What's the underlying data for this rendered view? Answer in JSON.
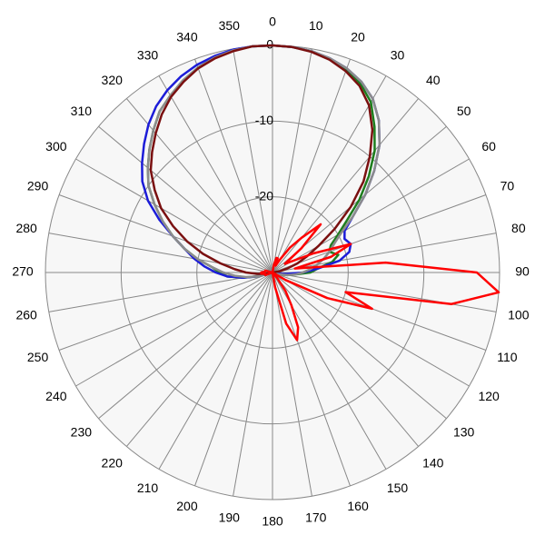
{
  "chart_data": {
    "type": "polar",
    "x": [
      0,
      5,
      10,
      15,
      20,
      25,
      30,
      35,
      40,
      45,
      50,
      55,
      60,
      65,
      70,
      75,
      80,
      85,
      90,
      95,
      100,
      105,
      110,
      115,
      120,
      125,
      130,
      135,
      140,
      145,
      150,
      155,
      160,
      165,
      170,
      175,
      180,
      185,
      190,
      195,
      200,
      205,
      210,
      215,
      220,
      225,
      230,
      235,
      240,
      245,
      250,
      255,
      260,
      265,
      270,
      275,
      280,
      285,
      290,
      295,
      300,
      305,
      310,
      315,
      320,
      325,
      330,
      335,
      340,
      345,
      350,
      355
    ],
    "xlim": [
      0,
      360
    ],
    "xticks": [
      0,
      10,
      20,
      30,
      40,
      50,
      60,
      70,
      80,
      90,
      100,
      110,
      120,
      130,
      140,
      150,
      160,
      170,
      180,
      190,
      200,
      210,
      220,
      230,
      240,
      250,
      260,
      270,
      280,
      290,
      300,
      310,
      320,
      330,
      340,
      350
    ],
    "ylim": [
      -30,
      0
    ],
    "yticks": [
      0,
      -10,
      -20
    ],
    "grid": true,
    "series": [
      {
        "color": "#1e7d1e",
        "values": [
          0,
          -0.1,
          -0.3,
          -0.8,
          -1.5,
          -2.5,
          -4,
          -6.5,
          -9,
          -12,
          -15,
          -18,
          -20,
          -21.5,
          -22,
          -21,
          -22,
          -24,
          -25,
          -27,
          -28,
          -29,
          -30,
          -30,
          -30,
          -30,
          -30,
          -30,
          -30,
          -30,
          -30,
          -30,
          -30,
          -30,
          -30,
          -30,
          -30,
          -30,
          -30,
          -30,
          -30,
          -30,
          -30,
          -30,
          -30,
          -30,
          -30,
          -30,
          -30,
          -30,
          -30,
          -28,
          -26,
          -24,
          -23,
          -22,
          -20,
          -18,
          -16,
          -14,
          -12,
          -10,
          -8.5,
          -7,
          -5.5,
          -4,
          -3,
          -2,
          -1.2,
          -0.6,
          -0.2,
          0
        ]
      },
      {
        "color": "#1c1cd8",
        "values": [
          0,
          -0.1,
          -0.3,
          -0.7,
          -1.3,
          -2.2,
          -3.5,
          -5.5,
          -8,
          -11,
          -14,
          -17,
          -19,
          -19.5,
          -19,
          -19.5,
          -21,
          -24,
          -26,
          -28,
          -29,
          -30,
          -30,
          -30,
          -30,
          -30,
          -30,
          -30,
          -30,
          -30,
          -30,
          -30,
          -30,
          -30,
          -30,
          -30,
          -30,
          -30,
          -30,
          -30,
          -30,
          -30,
          -30,
          -30,
          -30,
          -30,
          -30,
          -30,
          -30,
          -30,
          -30,
          -28,
          -26,
          -24,
          -22.5,
          -21,
          -19.5,
          -18,
          -16,
          -13.5,
          -11,
          -9,
          -7.5,
          -6,
          -4.5,
          -3.2,
          -2.2,
          -1.4,
          -0.8,
          -0.4,
          -0.1,
          0
        ]
      },
      {
        "color": "#8c8c8c",
        "values": [
          0,
          -0.1,
          -0.3,
          -0.7,
          -1.3,
          -2.2,
          -3.5,
          -5.5,
          -8,
          -11,
          -14,
          -17,
          -19.5,
          -21,
          -22,
          -23,
          -24,
          -25,
          -26,
          -27,
          -28,
          -29,
          -30,
          -30,
          -30,
          -30,
          -30,
          -30,
          -30,
          -30,
          -30,
          -30,
          -30,
          -30,
          -30,
          -30,
          -30,
          -30,
          -30,
          -30,
          -30,
          -30,
          -30,
          -30,
          -30,
          -30,
          -30,
          -30,
          -30,
          -30,
          -30,
          -28,
          -26.5,
          -25,
          -23.5,
          -22,
          -20,
          -18,
          -16,
          -14,
          -12,
          -10,
          -8.5,
          -7,
          -5.5,
          -4,
          -3,
          -2,
          -1.2,
          -0.6,
          -0.2,
          0
        ]
      },
      {
        "color": "#7a1010",
        "values": [
          0,
          -0.1,
          -0.4,
          -0.9,
          -1.7,
          -2.8,
          -4.5,
          -7,
          -10,
          -13,
          -16.5,
          -20,
          -23,
          -25,
          -26.5,
          -28,
          -29,
          -30,
          -30,
          -30,
          -30,
          -30,
          -30,
          -30,
          -30,
          -30,
          -30,
          -30,
          -30,
          -30,
          -30,
          -30,
          -30,
          -30,
          -30,
          -30,
          -30,
          -30,
          -30,
          -30,
          -30,
          -30,
          -30,
          -30,
          -30,
          -30,
          -30,
          -30,
          -30,
          -30,
          -30,
          -30,
          -29,
          -28,
          -26.5,
          -25,
          -23,
          -20.5,
          -18,
          -15.5,
          -13,
          -11,
          -9,
          -7.5,
          -6,
          -4.5,
          -3.2,
          -2.2,
          -1.3,
          -0.7,
          -0.3,
          0
        ]
      },
      {
        "color": "#ff0000",
        "values": [
          -30,
          -30,
          -29,
          -28,
          -28,
          -29,
          -28,
          -26,
          -24,
          -21,
          -25,
          -28,
          -27,
          -24,
          -19,
          -22,
          -27,
          -15,
          -3,
          0,
          -6,
          -20,
          -16,
          -22,
          -28,
          -30,
          -30,
          -30,
          -29,
          -27,
          -25,
          -22,
          -20.5,
          -23,
          -28,
          -30,
          -30,
          -30,
          -30,
          -30,
          -30,
          -30,
          -30,
          -30,
          -30,
          -30,
          -30,
          -30,
          -30,
          -30,
          -29,
          -29,
          -29,
          -28.5,
          -28.5,
          -29,
          -29,
          -29,
          -30,
          -30,
          -30,
          -30,
          -30,
          -30,
          -30,
          -30,
          -30,
          -30,
          -30,
          -30,
          -30,
          -30
        ]
      }
    ]
  }
}
